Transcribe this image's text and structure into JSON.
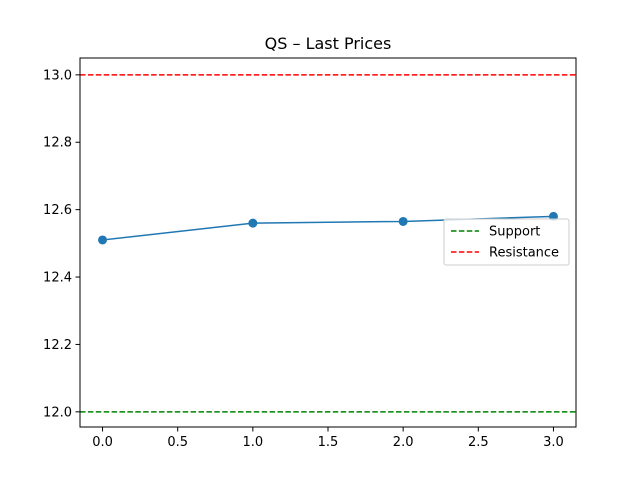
{
  "chart_data": {
    "type": "line",
    "title": "QS – Last Prices",
    "xlabel": "",
    "ylabel": "",
    "xlim": [
      -0.15,
      3.15
    ],
    "ylim": [
      11.955,
      13.05
    ],
    "xticks": [
      0.0,
      0.5,
      1.0,
      1.5,
      2.0,
      2.5,
      3.0
    ],
    "xtick_labels": [
      "0.0",
      "0.5",
      "1.0",
      "1.5",
      "2.0",
      "2.5",
      "3.0"
    ],
    "yticks": [
      12.0,
      12.2,
      12.4,
      12.6,
      12.8,
      13.0
    ],
    "ytick_labels": [
      "12.0",
      "12.2",
      "12.4",
      "12.6",
      "12.8",
      "13.0"
    ],
    "grid": false,
    "legend_position": "right",
    "series": [
      {
        "x": [
          0,
          1,
          2,
          3
        ],
        "values": [
          12.51,
          12.56,
          12.565,
          12.58
        ],
        "color": "#1f77b4",
        "style": "solid",
        "marker": "circle"
      }
    ],
    "reference_lines": [
      {
        "name": "Support",
        "value": 12.0,
        "color": "#008000",
        "style": "dashed"
      },
      {
        "name": "Resistance",
        "value": 13.0,
        "color": "#ff0000",
        "style": "dashed"
      }
    ]
  }
}
